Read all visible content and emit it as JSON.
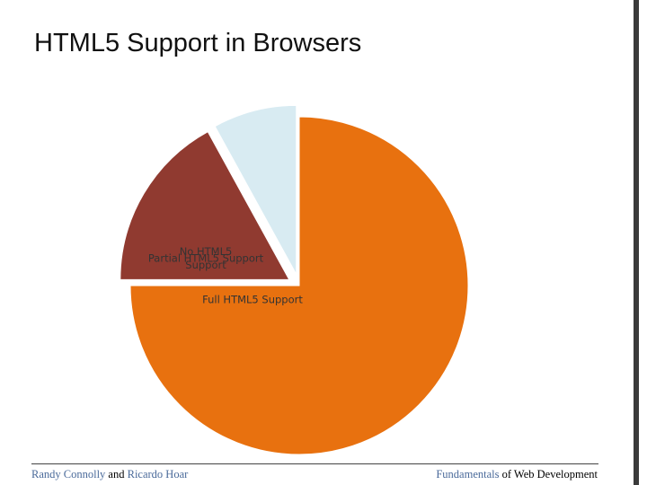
{
  "title": "HTML5 Support in Browsers",
  "chart_data": {
    "type": "pie",
    "categories": [
      "Full HTML5 Support",
      "Partial HTML5 Support",
      "No HTML5 Support"
    ],
    "values": [
      75,
      17,
      8
    ],
    "colors": [
      "#e8710f",
      "#903a30",
      "#d8ebf2"
    ],
    "exploded": [
      false,
      true,
      true
    ]
  },
  "footer": {
    "left": [
      "Randy Connolly",
      "and",
      "Ricardo Hoar"
    ],
    "right": [
      "Fundamentals",
      "of Web Development"
    ]
  }
}
